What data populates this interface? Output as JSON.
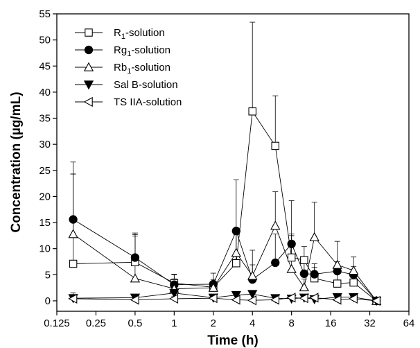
{
  "chart_data": {
    "type": "line",
    "xlabel": "Time (h)",
    "ylabel": "Concentration (µg/mL)",
    "x_scale": "log2",
    "xlim": [
      0.125,
      64
    ],
    "ylim": [
      -2,
      55
    ],
    "x_ticks": [
      0.125,
      0.25,
      0.5,
      1,
      2,
      4,
      8,
      16,
      32,
      64
    ],
    "x_tick_labels": [
      "0.125",
      "0.25",
      "0.5",
      "1",
      "2",
      "4",
      "8",
      "16",
      "32",
      "64"
    ],
    "y_ticks": [
      0,
      5,
      10,
      15,
      20,
      25,
      30,
      35,
      40,
      45,
      50,
      55
    ],
    "y_tick_labels": [
      "0",
      "5",
      "10",
      "15",
      "20",
      "25",
      "30",
      "35",
      "40",
      "45",
      "50",
      "55"
    ],
    "legend_position": "top-left",
    "x": [
      0.167,
      0.5,
      1,
      2,
      3,
      4,
      6,
      8,
      10,
      12,
      18,
      24,
      36
    ],
    "series": [
      {
        "name": "R",
        "sub": "1",
        "suffix": "-solution",
        "marker": "open-square",
        "values": [
          7.1,
          7.4,
          3.4,
          2.6,
          7.2,
          36.3,
          29.7,
          8.3,
          7.8,
          4.3,
          3.3,
          3.5,
          0
        ],
        "errors": [
          17.2,
          5.6,
          1.6,
          1.5,
          5.5,
          17.1,
          9.6,
          4.2,
          2.6,
          2.1,
          2.2,
          1.6,
          0.3
        ]
      },
      {
        "name": "Rg",
        "sub": "1",
        "suffix": "-solution",
        "marker": "filled-circle",
        "values": [
          15.6,
          8.3,
          3.1,
          3.2,
          13.4,
          4.1,
          7.3,
          10.9,
          5.2,
          5.1,
          5.7,
          5.0,
          0
        ],
        "errors": [
          11.0,
          4.4,
          2.0,
          2.1,
          9.8,
          5.6,
          5.5,
          8.3,
          2.5,
          2.0,
          1.8,
          1.6,
          0.3
        ]
      },
      {
        "name": "Rb",
        "sub": "1",
        "suffix": "-solution",
        "marker": "open-triangle-up",
        "values": [
          12.8,
          4.3,
          2.3,
          2.5,
          9.2,
          4.8,
          14.4,
          6.1,
          2.6,
          12.2,
          6.9,
          5.8,
          0
        ],
        "errors": [
          11.5,
          8.1,
          1.9,
          0.9,
          3.7,
          2.1,
          6.5,
          6.7,
          1.6,
          6.7,
          4.5,
          2.6,
          0.3
        ]
      },
      {
        "name": "Sal B",
        "sub": "",
        "suffix": "-solution",
        "marker": "filled-triangle-down",
        "values": [
          0.5,
          0.6,
          1.5,
          0.6,
          1.1,
          1.3,
          0.5,
          0.4,
          0.6,
          0.3,
          0.7,
          0.7,
          0
        ],
        "errors": [
          1.0,
          0.5,
          0.8,
          0.4,
          0.6,
          0.6,
          0.3,
          0.3,
          0.3,
          0.2,
          0.3,
          0.3,
          0.2
        ]
      },
      {
        "name": "TS IIA",
        "sub": "",
        "suffix": "-solution",
        "marker": "open-triangle-left",
        "values": [
          0.4,
          0.2,
          0.4,
          0.5,
          0.2,
          0.1,
          0.2,
          0.6,
          0.5,
          0.6,
          0.2,
          0.4,
          0
        ],
        "errors": [
          0.6,
          0.3,
          0.4,
          0.3,
          0.2,
          0.2,
          0.2,
          0.3,
          0.3,
          0.3,
          0.2,
          0.2,
          0.1
        ]
      }
    ]
  }
}
